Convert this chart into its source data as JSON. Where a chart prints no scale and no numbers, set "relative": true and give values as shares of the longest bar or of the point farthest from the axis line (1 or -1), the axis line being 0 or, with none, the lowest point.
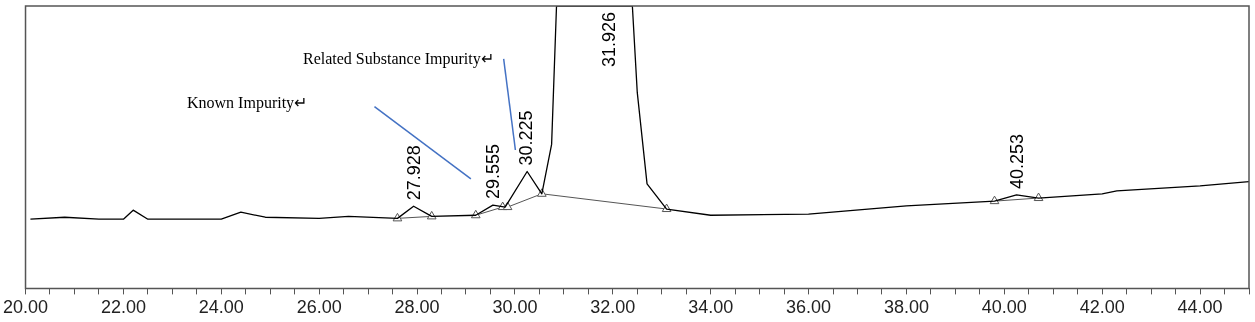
{
  "chart_data": {
    "type": "line",
    "relative": true,
    "xlim": [
      20,
      45
    ],
    "xticks": [
      {
        "value": 20,
        "label": "20.00"
      },
      {
        "value": 20.5,
        "label": null
      },
      {
        "value": 21,
        "label": null
      },
      {
        "value": 21.5,
        "label": null
      },
      {
        "value": 22,
        "label": "22.00"
      },
      {
        "value": 22.5,
        "label": null
      },
      {
        "value": 23,
        "label": null
      },
      {
        "value": 23.5,
        "label": null
      },
      {
        "value": 24,
        "label": "24.00"
      },
      {
        "value": 24.5,
        "label": null
      },
      {
        "value": 25,
        "label": null
      },
      {
        "value": 25.5,
        "label": null
      },
      {
        "value": 26,
        "label": "26.00"
      },
      {
        "value": 26.5,
        "label": null
      },
      {
        "value": 27,
        "label": null
      },
      {
        "value": 27.5,
        "label": null
      },
      {
        "value": 28,
        "label": "28.00"
      },
      {
        "value": 28.5,
        "label": null
      },
      {
        "value": 29,
        "label": null
      },
      {
        "value": 29.5,
        "label": null
      },
      {
        "value": 30,
        "label": "30.00"
      },
      {
        "value": 30.5,
        "label": null
      },
      {
        "value": 31,
        "label": null
      },
      {
        "value": 31.5,
        "label": null
      },
      {
        "value": 32,
        "label": "32.00"
      },
      {
        "value": 32.5,
        "label": null
      },
      {
        "value": 33,
        "label": null
      },
      {
        "value": 33.5,
        "label": null
      },
      {
        "value": 34,
        "label": "34.00"
      },
      {
        "value": 34.5,
        "label": null
      },
      {
        "value": 35,
        "label": null
      },
      {
        "value": 35.5,
        "label": null
      },
      {
        "value": 36,
        "label": "36.00"
      },
      {
        "value": 36.5,
        "label": null
      },
      {
        "value": 37,
        "label": null
      },
      {
        "value": 37.5,
        "label": null
      },
      {
        "value": 38,
        "label": "38.00"
      },
      {
        "value": 38.5,
        "label": null
      },
      {
        "value": 39,
        "label": null
      },
      {
        "value": 39.5,
        "label": null
      },
      {
        "value": 40,
        "label": "40.00"
      },
      {
        "value": 40.5,
        "label": null
      },
      {
        "value": 41,
        "label": null
      },
      {
        "value": 41.5,
        "label": null
      },
      {
        "value": 42,
        "label": "42.00"
      },
      {
        "value": 42.5,
        "label": null
      },
      {
        "value": 43,
        "label": null
      },
      {
        "value": 43.5,
        "label": null
      },
      {
        "value": 44,
        "label": "44.00"
      },
      {
        "value": 44.5,
        "label": null
      },
      {
        "value": 45,
        "label": null
      }
    ],
    "tick_labels": "x",
    "grid": false,
    "legend": false,
    "series": [
      {
        "color": "#000000",
        "marker": "none",
        "x": [
          20.1,
          20.8,
          21.5,
          22.0,
          22.2,
          22.5,
          24.0,
          24.4,
          24.9,
          26.0,
          26.6,
          27.6,
          27.93,
          28.3,
          29.2,
          29.55,
          29.8,
          30.25,
          30.55,
          30.75,
          30.85,
          32.4,
          32.5,
          32.7,
          33.1,
          34.0,
          36.0,
          38.0,
          39.8,
          40.25,
          40.7,
          42.0,
          42.3,
          44.0,
          45.0
        ],
        "values": [
          0.245,
          0.252,
          0.245,
          0.245,
          0.277,
          0.245,
          0.245,
          0.27,
          0.252,
          0.248,
          0.255,
          0.248,
          0.291,
          0.255,
          0.259,
          0.295,
          0.288,
          0.414,
          0.335,
          0.51,
          1,
          1,
          0.694,
          0.37,
          0.281,
          0.259,
          0.263,
          0.292,
          0.309,
          0.331,
          0.32,
          0.335,
          0.345,
          0.363,
          0.378
        ]
      },
      {
        "color": "#555555",
        "marker": "triangle",
        "x": [
          27.6,
          28.3,
          28.8,
          29.2,
          29.75,
          29.78,
          29.85,
          30.55,
          33.1,
          35,
          39.8,
          40.7
        ],
        "values": [
          0.248,
          0.255,
          null,
          0.259,
          0.288,
          null,
          0.288,
          0.335,
          0.281,
          null,
          0.309,
          0.32
        ]
      }
    ],
    "annotations": [
      {
        "text": "27.928",
        "x": 27.928,
        "y": 0.291
      },
      {
        "text": "29.555",
        "x": 29.555,
        "y": 0.295
      },
      {
        "text": "30.225",
        "x": 30.225,
        "y": 0.414
      },
      {
        "text": "31.926",
        "x": 31.926,
        "y": 1
      },
      {
        "text": "40.253",
        "x": 40.253,
        "y": 0.331
      },
      "Known Impurity↵",
      "Related Substance Impurity↵"
    ]
  }
}
